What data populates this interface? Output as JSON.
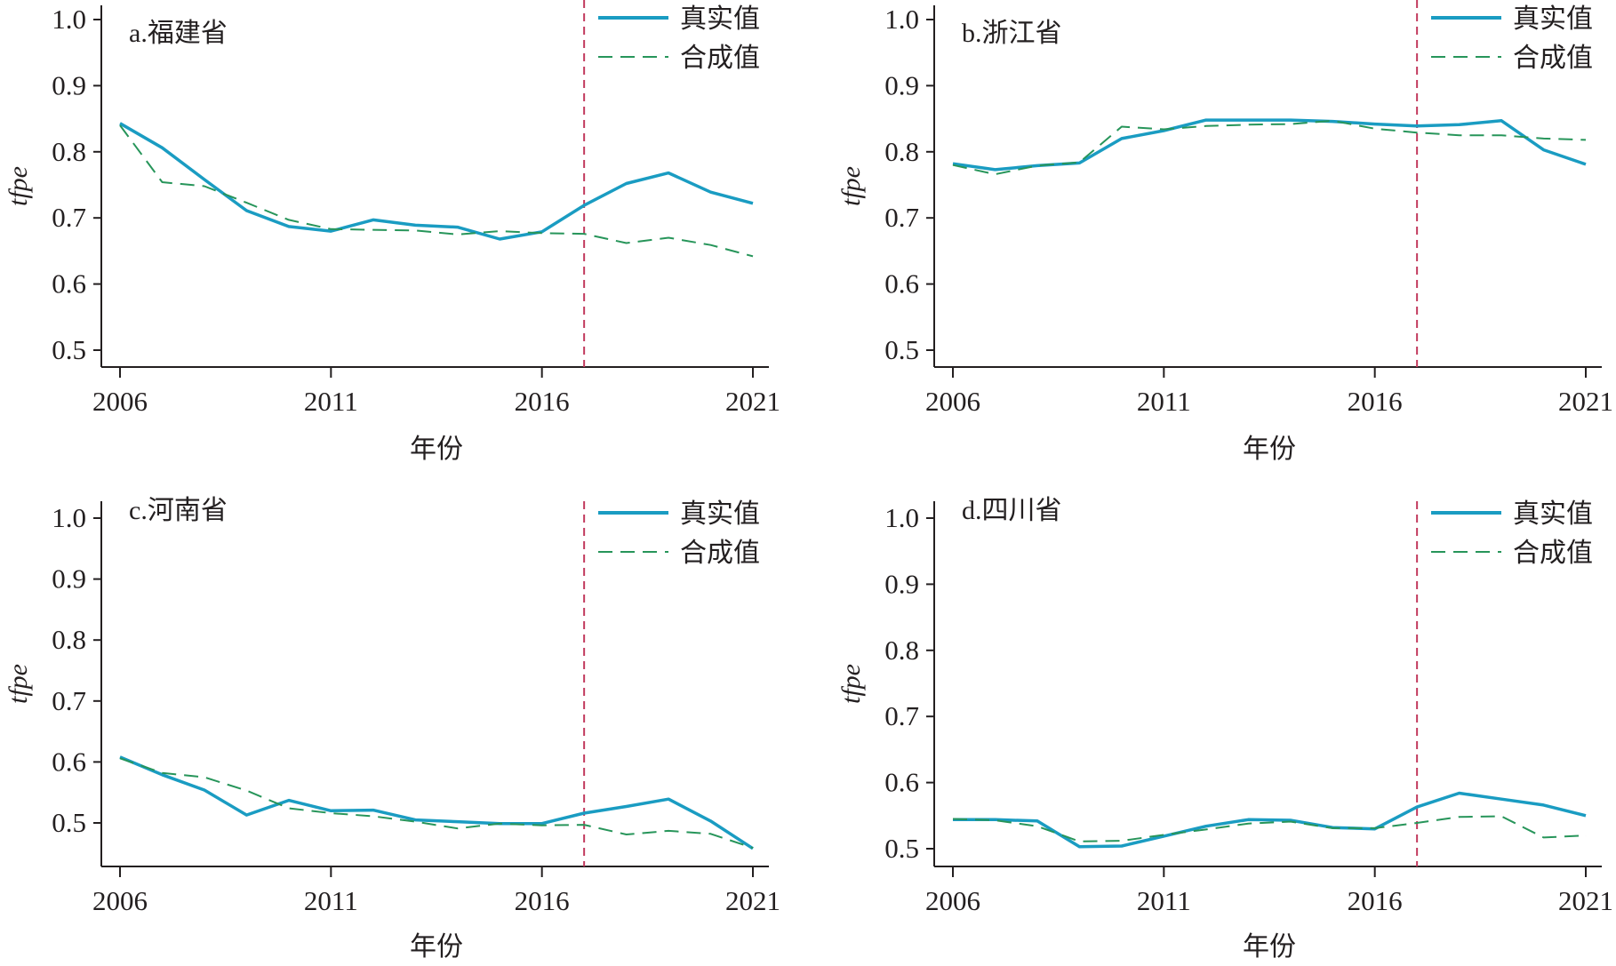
{
  "chart_data": [
    {
      "type": "line",
      "title": "a.福建省",
      "xlabel": "年份",
      "ylabel": "tfpe",
      "x": [
        2006,
        2007,
        2008,
        2009,
        2010,
        2011,
        2012,
        2013,
        2014,
        2015,
        2016,
        2017,
        2018,
        2019,
        2020,
        2021
      ],
      "xticks": [
        "2006",
        "2011",
        "2016",
        "2021"
      ],
      "yticks": [
        "0.5",
        "0.6",
        "0.7",
        "0.8",
        "0.9",
        "1.0"
      ],
      "ylim": [
        0.474,
        1.026
      ],
      "treatment_year": 2017,
      "series": [
        {
          "name": "真实值",
          "values": [
            0.843,
            0.806,
            0.758,
            0.711,
            0.687,
            0.68,
            0.697,
            0.689,
            0.686,
            0.668,
            0.679,
            0.719,
            0.752,
            0.768,
            0.739,
            0.722
          ]
        },
        {
          "name": "合成值",
          "values": [
            0.84,
            0.754,
            0.748,
            0.723,
            0.697,
            0.683,
            0.682,
            0.681,
            0.675,
            0.68,
            0.677,
            0.676,
            0.662,
            0.67,
            0.659,
            0.642
          ]
        }
      ]
    },
    {
      "type": "line",
      "title": "b.浙江省",
      "xlabel": "年份",
      "ylabel": "tfpe",
      "x": [
        2006,
        2007,
        2008,
        2009,
        2010,
        2011,
        2012,
        2013,
        2014,
        2015,
        2016,
        2017,
        2018,
        2019,
        2020,
        2021
      ],
      "xticks": [
        "2006",
        "2011",
        "2016",
        "2021"
      ],
      "yticks": [
        "0.5",
        "0.6",
        "0.7",
        "0.8",
        "0.9",
        "1.0"
      ],
      "ylim": [
        0.474,
        1.026
      ],
      "treatment_year": 2017,
      "series": [
        {
          "name": "真实值",
          "values": [
            0.782,
            0.773,
            0.779,
            0.783,
            0.82,
            0.832,
            0.848,
            0.848,
            0.848,
            0.846,
            0.842,
            0.839,
            0.841,
            0.847,
            0.803,
            0.781
          ]
        },
        {
          "name": "合成值",
          "values": [
            0.78,
            0.766,
            0.779,
            0.784,
            0.838,
            0.834,
            0.839,
            0.841,
            0.842,
            0.847,
            0.835,
            0.829,
            0.825,
            0.825,
            0.82,
            0.818
          ]
        }
      ]
    },
    {
      "type": "line",
      "title": "c.河南省",
      "xlabel": "年份",
      "ylabel": "tfpe",
      "x": [
        2006,
        2007,
        2008,
        2009,
        2010,
        2011,
        2012,
        2013,
        2014,
        2015,
        2016,
        2017,
        2018,
        2019,
        2020,
        2021
      ],
      "xticks": [
        "2006",
        "2011",
        "2016",
        "2021"
      ],
      "yticks": [
        "0.5",
        "0.6",
        "0.7",
        "0.8",
        "0.9",
        "1.0"
      ],
      "ylim": [
        0.429,
        1.028
      ],
      "treatment_year": 2017,
      "series": [
        {
          "name": "真实值",
          "values": [
            0.608,
            0.579,
            0.554,
            0.513,
            0.537,
            0.52,
            0.521,
            0.505,
            0.502,
            0.499,
            0.499,
            0.516,
            0.527,
            0.539,
            0.503,
            0.458
          ]
        },
        {
          "name": "合成值",
          "values": [
            0.606,
            0.582,
            0.575,
            0.553,
            0.524,
            0.516,
            0.511,
            0.502,
            0.491,
            0.499,
            0.496,
            0.497,
            0.481,
            0.487,
            0.482,
            0.459
          ]
        }
      ]
    },
    {
      "type": "line",
      "title": "d.四川省",
      "xlabel": "年份",
      "ylabel": "tfpe",
      "x": [
        2006,
        2007,
        2008,
        2009,
        2010,
        2011,
        2012,
        2013,
        2014,
        2015,
        2016,
        2017,
        2018,
        2019,
        2020,
        2021
      ],
      "xticks": [
        "2006",
        "2011",
        "2016",
        "2021"
      ],
      "yticks": [
        "0.5",
        "0.6",
        "0.7",
        "0.8",
        "0.9",
        "1.0"
      ],
      "ylim": [
        0.474,
        1.026
      ],
      "treatment_year": 2017,
      "series": [
        {
          "name": "真实值",
          "values": [
            0.544,
            0.544,
            0.542,
            0.503,
            0.504,
            0.519,
            0.534,
            0.544,
            0.543,
            0.532,
            0.53,
            0.563,
            0.584,
            0.575,
            0.566,
            0.55
          ]
        },
        {
          "name": "合成值",
          "values": [
            0.545,
            0.543,
            0.534,
            0.511,
            0.512,
            0.521,
            0.529,
            0.538,
            0.541,
            0.531,
            0.531,
            0.539,
            0.548,
            0.549,
            0.517,
            0.52
          ]
        }
      ]
    }
  ],
  "colors": {
    "real": "#1a9cc2",
    "synthetic": "#27955a",
    "treatment_line": "#c23b5e",
    "axis": "#231f20"
  }
}
